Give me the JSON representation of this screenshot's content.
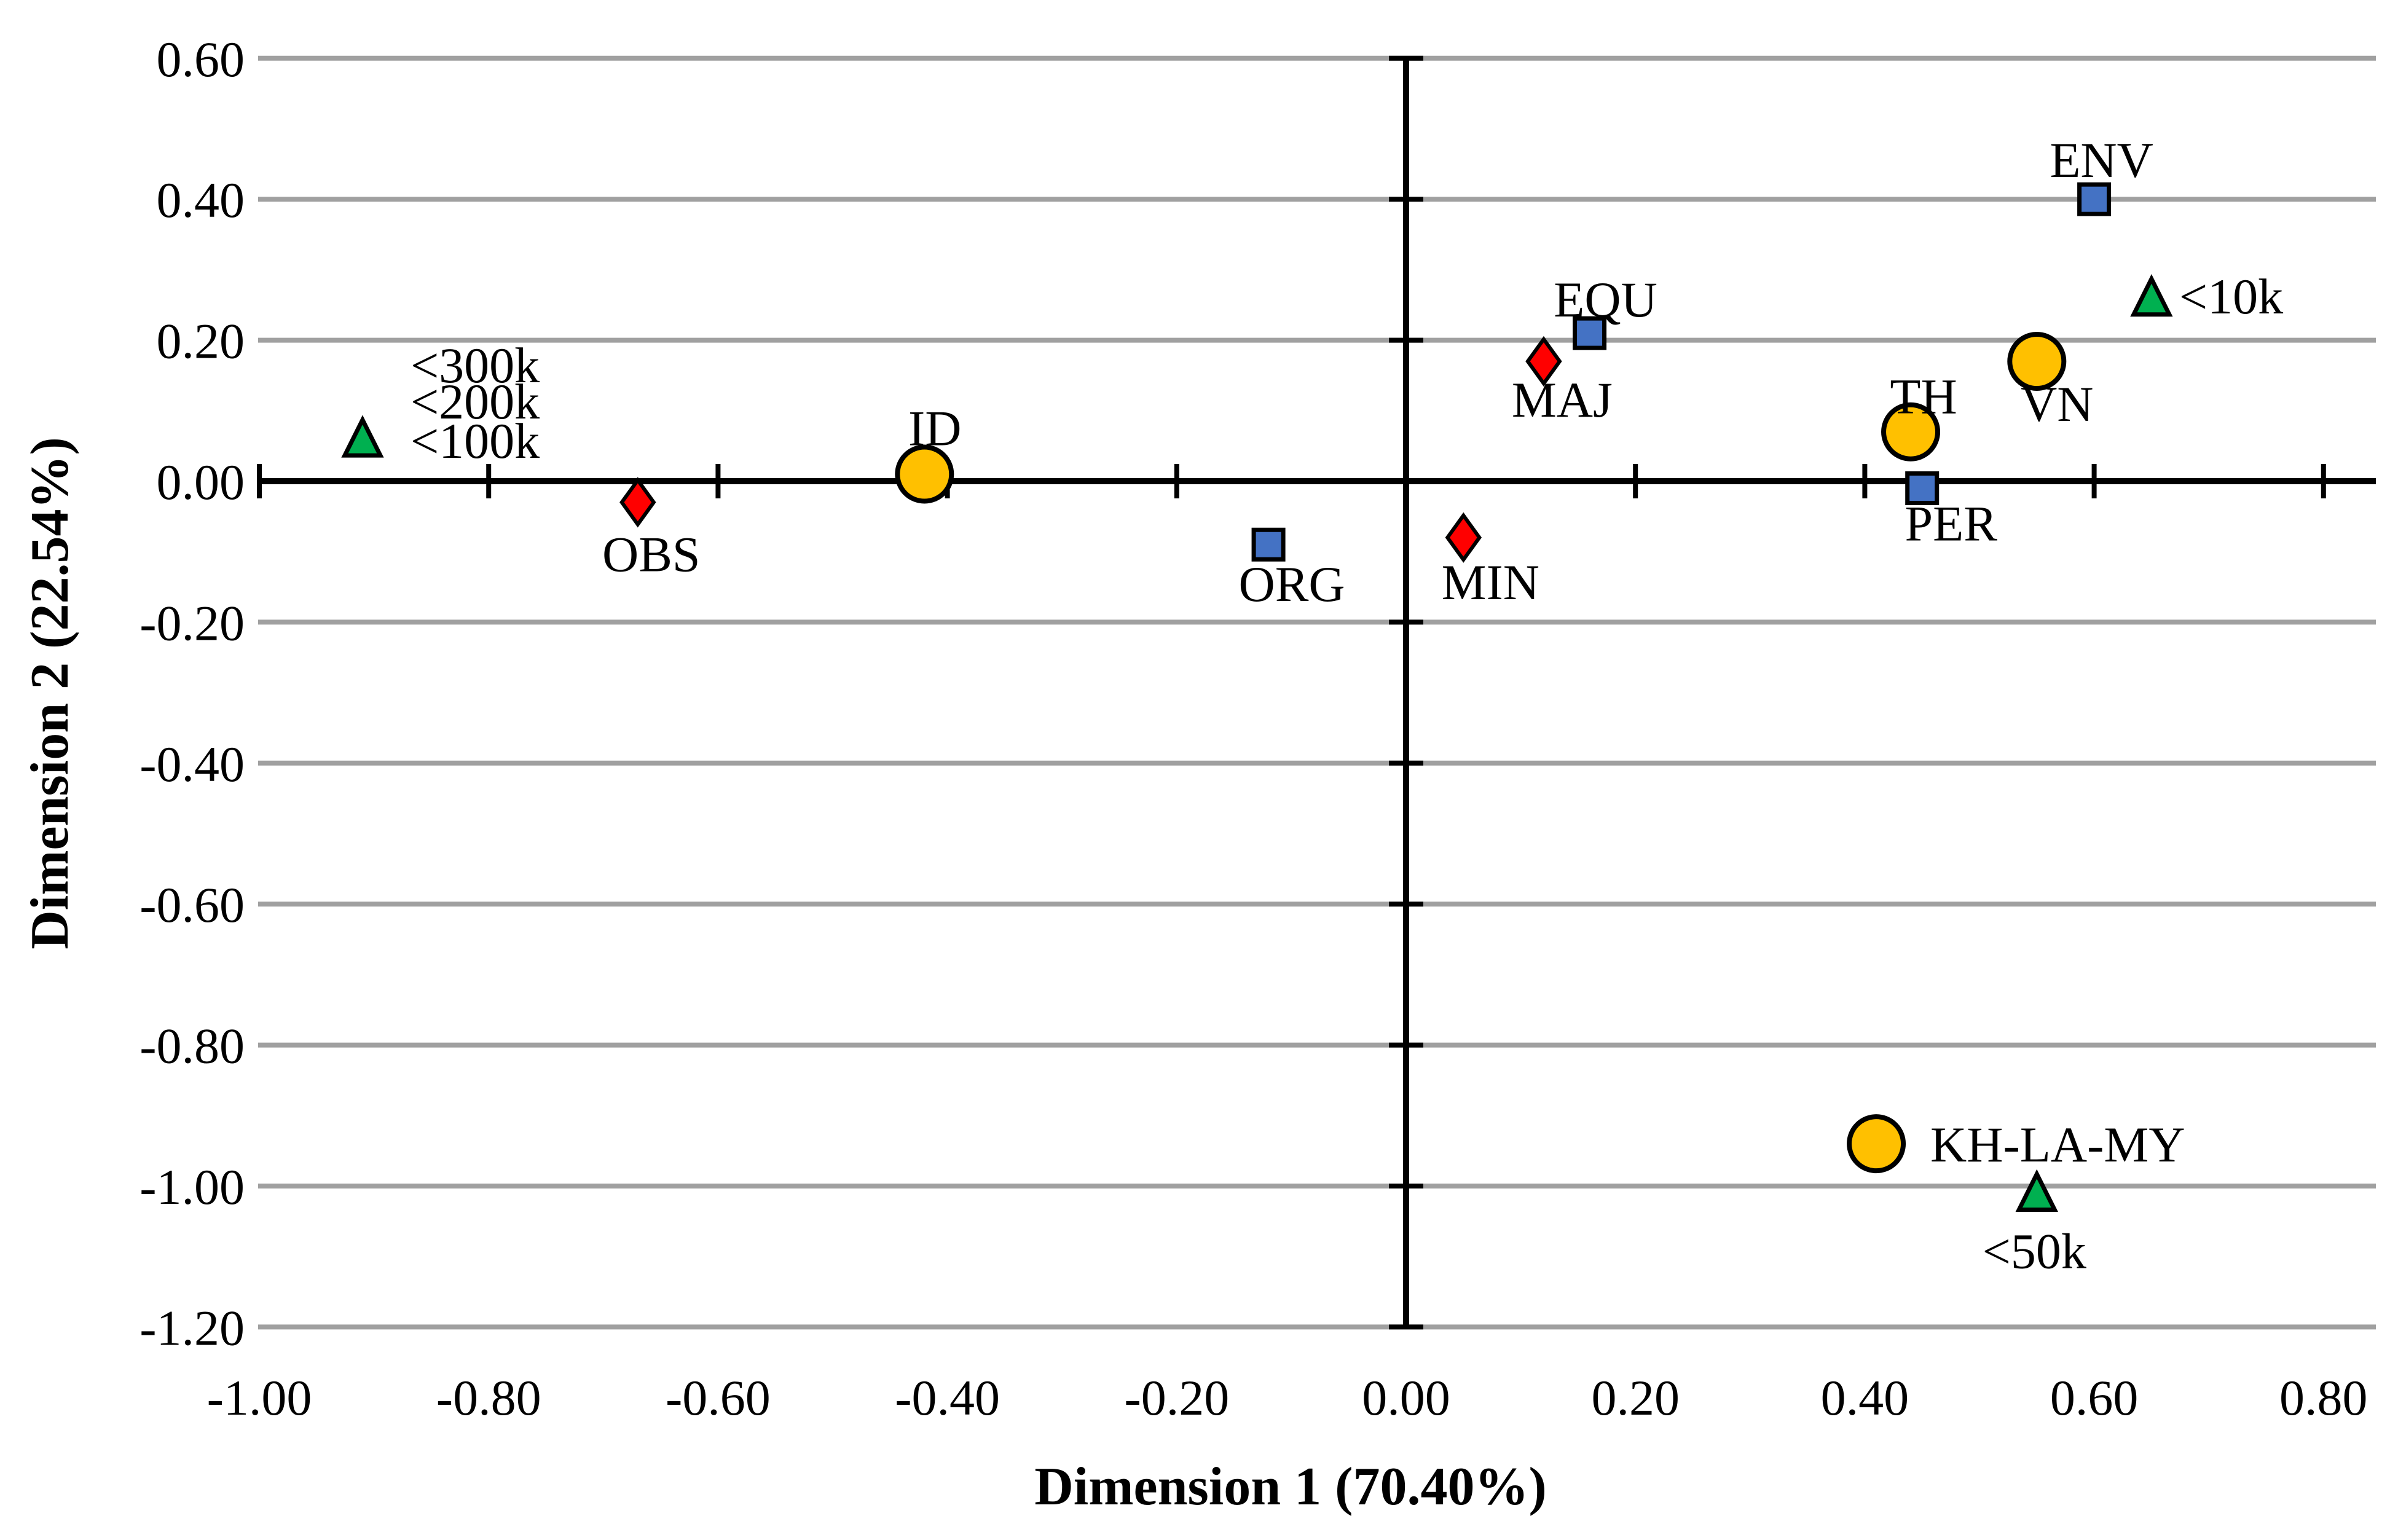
{
  "chart_data": {
    "type": "scatter",
    "title": "",
    "grid": true,
    "legend": false,
    "background_color": "#FFFFFF",
    "gridline_color": "#A0A0A0",
    "axis_color": "#000000",
    "x_axis": {
      "title": "Dimension 1 (70.40%)",
      "min": -1.0,
      "max": 0.8,
      "tick_step": 0.2,
      "ticks": [
        {
          "v": -1.0,
          "label": "-1.00"
        },
        {
          "v": -0.8,
          "label": "-0.80"
        },
        {
          "v": -0.6,
          "label": "-0.60"
        },
        {
          "v": -0.4,
          "label": "-0.40"
        },
        {
          "v": -0.2,
          "label": "-0.20"
        },
        {
          "v": 0.0,
          "label": "0.00"
        },
        {
          "v": 0.2,
          "label": "0.20"
        },
        {
          "v": 0.4,
          "label": "0.40"
        },
        {
          "v": 0.6,
          "label": "0.60"
        },
        {
          "v": 0.8,
          "label": "0.80"
        }
      ]
    },
    "y_axis": {
      "title": "Dimension 2 (22.54%)",
      "min": -1.2,
      "max": 0.6,
      "tick_step": 0.2,
      "ticks": [
        {
          "v": 0.6,
          "label": "0.60"
        },
        {
          "v": 0.4,
          "label": "0.40"
        },
        {
          "v": 0.2,
          "label": "0.20"
        },
        {
          "v": 0.0,
          "label": "0.00"
        },
        {
          "v": -0.2,
          "label": "-0.20"
        },
        {
          "v": -0.4,
          "label": "-0.40"
        },
        {
          "v": -0.6,
          "label": "-0.60"
        },
        {
          "v": -0.8,
          "label": "-0.80"
        },
        {
          "v": -1.0,
          "label": "-1.00"
        },
        {
          "v": -1.2,
          "label": "-1.20"
        }
      ]
    },
    "series": [
      {
        "name": "yellow-circles",
        "marker": "circle",
        "fill": "#FFC000",
        "stroke": "#000000",
        "points": [
          {
            "label": "ID",
            "x": -0.42,
            "y": 0.01,
            "anchor": "middle",
            "dx": 17,
            "dy": -47
          },
          {
            "label": "TH",
            "x": 0.44,
            "y": 0.07,
            "anchor": "middle",
            "dx": 21,
            "dy": -30
          },
          {
            "label": "VN",
            "x": 0.55,
            "y": 0.17,
            "anchor": "middle",
            "dx": 33,
            "dy": 97
          },
          {
            "label": "KH-LA-MY",
            "x": 0.41,
            "y": -0.94,
            "anchor": "start",
            "dx": 88,
            "dy": 29
          }
        ]
      },
      {
        "name": "blue-squares",
        "marker": "square",
        "fill": "#4472C4",
        "stroke": "#000000",
        "points": [
          {
            "label": "ENV",
            "x": 0.6,
            "y": 0.4,
            "anchor": "middle",
            "dx": 12,
            "dy": -36
          },
          {
            "label": "EQU",
            "x": 0.16,
            "y": 0.21,
            "anchor": "middle",
            "dx": 26,
            "dy": -27
          },
          {
            "label": "ORG",
            "x": -0.12,
            "y": -0.09,
            "anchor": "middle",
            "dx": 38,
            "dy": 92
          },
          {
            "label": "PER",
            "x": 0.45,
            "y": -0.01,
            "anchor": "middle",
            "dx": 47,
            "dy": 85
          }
        ]
      },
      {
        "name": "red-diamonds",
        "marker": "diamond",
        "fill": "#FF0000",
        "stroke": "#000000",
        "points": [
          {
            "label": "OBS",
            "x": -0.67,
            "y": -0.03,
            "anchor": "middle",
            "dx": 22,
            "dy": 112
          },
          {
            "label": "MAJ",
            "x": 0.12,
            "y": 0.17,
            "anchor": "middle",
            "dx": 30,
            "dy": 90
          },
          {
            "label": "MIN",
            "x": 0.05,
            "y": -0.08,
            "anchor": "middle",
            "dx": 44,
            "dy": 100
          }
        ]
      },
      {
        "name": "green-triangles",
        "marker": "triangle",
        "fill": "#00B050",
        "stroke": "#000000",
        "points": [
          {
            "label": "city-under-300k-200k-100k",
            "x": -0.91,
            "y": 0.06,
            "anchor": "start",
            "lines": [
              {
                "text": "<300k",
                "dx": 78,
                "dy": -92
              },
              {
                "text": "<200k",
                "dx": 78,
                "dy": -33
              },
              {
                "text": "<100k",
                "dx": 78,
                "dy": 31
              }
            ]
          },
          {
            "label": "<10k",
            "x": 0.65,
            "y": 0.26,
            "anchor": "start",
            "dx": 45,
            "dy": 25
          },
          {
            "label": "<50k",
            "x": 0.55,
            "y": -1.01,
            "anchor": "middle",
            "dx": -4,
            "dy": 122
          }
        ]
      }
    ]
  }
}
